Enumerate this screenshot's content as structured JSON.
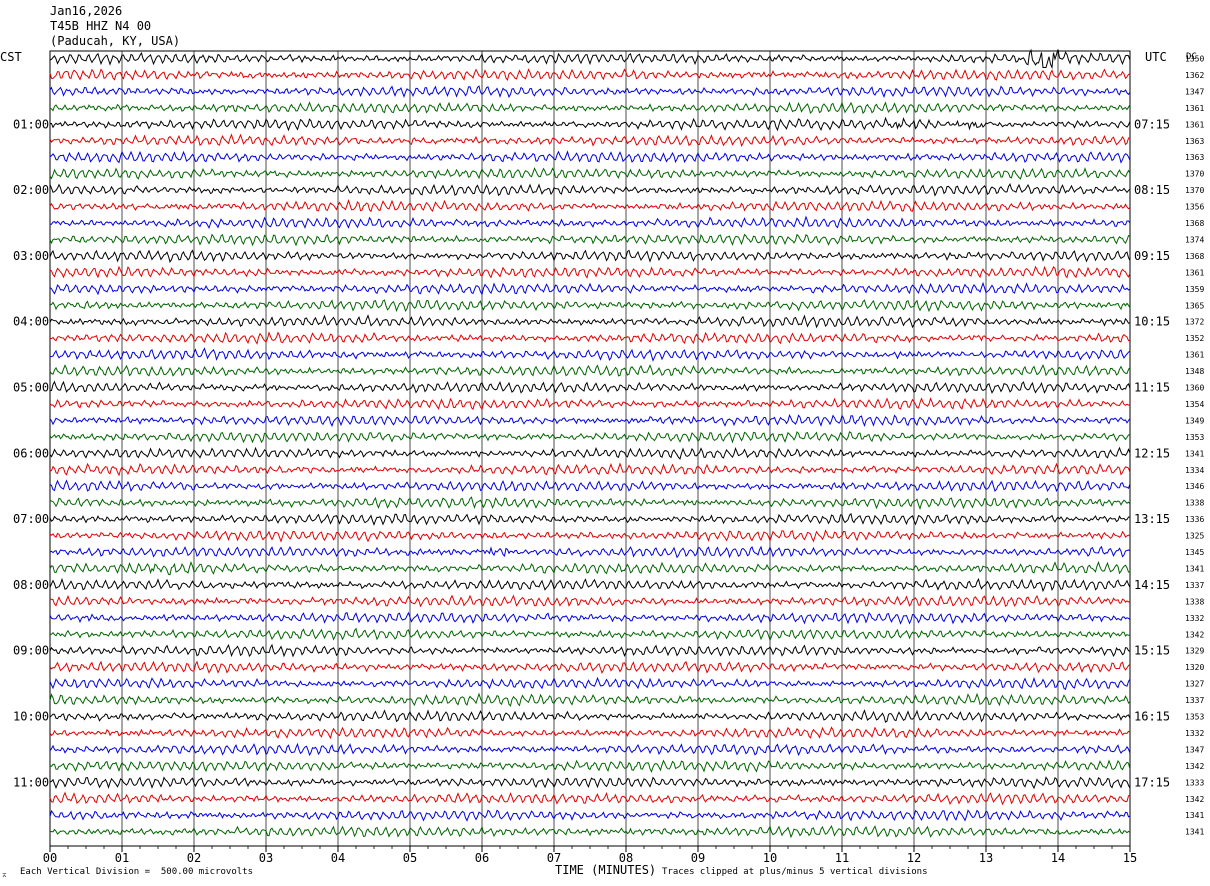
{
  "header": {
    "date": "Jan16,2026",
    "station": "T45B HHZ N4 00",
    "location": "(Paducah, KY, USA)"
  },
  "left_tz": "CST",
  "right_tz": "UTC",
  "dc_label": "DC",
  "footer": {
    "scale_note": "Each Vertical Division =  500.00 microvolts",
    "xlabel": "TIME (MINUTES)",
    "clip_note": "Traces clipped at plus/minus 5 vertical divisions"
  },
  "chart_data": {
    "type": "line",
    "title": "",
    "xlabel": "TIME (MINUTES)",
    "xlim": [
      0,
      15
    ],
    "x_ticks": [
      "00",
      "01",
      "02",
      "03",
      "04",
      "05",
      "06",
      "07",
      "08",
      "09",
      "10",
      "11",
      "12",
      "13",
      "14",
      "15"
    ],
    "trace_colors": [
      "#000000",
      "#e00000",
      "#0000e0",
      "#006400"
    ],
    "left_hour_labels": [
      "01:00",
      "02:00",
      "03:00",
      "04:00",
      "05:00",
      "06:00",
      "07:00",
      "08:00",
      "09:00",
      "10:00",
      "11:00"
    ],
    "right_hour_labels": [
      "07:15",
      "08:15",
      "09:15",
      "10:15",
      "11:15",
      "12:15",
      "13:15",
      "14:15",
      "15:15",
      "16:15",
      "17:15"
    ],
    "dc_offsets": [
      1350,
      1362,
      1347,
      1361,
      1361,
      1363,
      1363,
      1370,
      1370,
      1356,
      1368,
      1374,
      1368,
      1361,
      1359,
      1365,
      1372,
      1352,
      1361,
      1348,
      1360,
      1354,
      1349,
      1353,
      1341,
      1334,
      1346,
      1338,
      1336,
      1325,
      1345,
      1341,
      1337,
      1338,
      1332,
      1342,
      1329,
      1320,
      1327,
      1337,
      1353,
      1332,
      1347,
      1342,
      1333,
      1342,
      1341,
      1341
    ],
    "events": [
      {
        "trace": 0,
        "minute": 13.8,
        "note": "large burst"
      },
      {
        "trace": 4,
        "minute": 11.9
      },
      {
        "trace": 4,
        "minute": 12.9
      },
      {
        "trace": 31,
        "minute": 1.6
      },
      {
        "trace": 30,
        "minute": 6.1
      }
    ]
  }
}
